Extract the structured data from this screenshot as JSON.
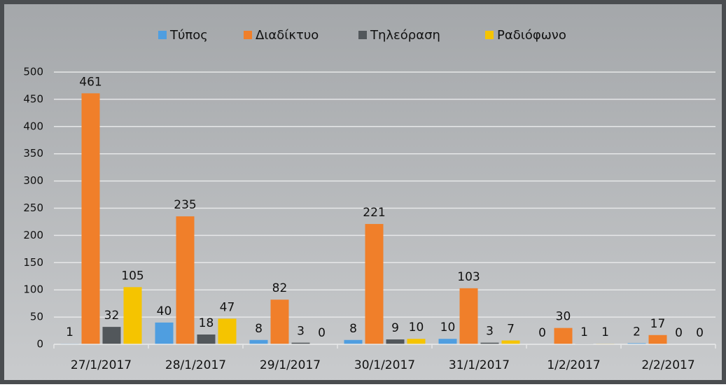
{
  "chart_data": {
    "type": "bar",
    "categories": [
      "27/1/2017",
      "28/1/2017",
      "29/1/2017",
      "30/1/2017",
      "31/1/2017",
      "1/2/2017",
      "2/2/2017"
    ],
    "series": [
      {
        "name": "Τύπος",
        "color": "#4f9ee0",
        "values": [
          1,
          40,
          8,
          8,
          10,
          0,
          2
        ]
      },
      {
        "name": "Διαδίκτυο",
        "color": "#f07f2a",
        "values": [
          461,
          235,
          82,
          221,
          103,
          30,
          17
        ]
      },
      {
        "name": "Τηλεόραση",
        "color": "#52575b",
        "values": [
          32,
          18,
          3,
          9,
          3,
          1,
          0
        ]
      },
      {
        "name": "Ραδιόφωνο",
        "color": "#f5c400",
        "values": [
          105,
          47,
          0,
          10,
          7,
          1,
          0
        ]
      }
    ],
    "ylim": [
      0,
      500
    ],
    "yticks": [
      0,
      50,
      100,
      150,
      200,
      250,
      300,
      350,
      400,
      450,
      500
    ],
    "grid": true,
    "legend": "top"
  }
}
